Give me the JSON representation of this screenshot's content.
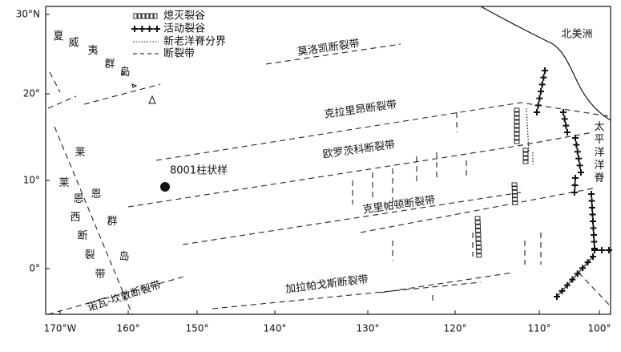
{
  "legend": [
    "熄灭裂谷",
    "活动裂谷",
    "新老洋脊分界",
    "断裂带"
  ],
  "lon_ticks": [
    "170°W",
    "160°",
    "150°",
    "140°",
    "130°",
    "120°",
    "110°",
    "100°"
  ],
  "lat_ticks": [
    "30°N",
    "20°",
    "10°",
    "0°"
  ],
  "labels": {
    "hawaii": "夏威夷群岛",
    "line_islands": "莱恩群岛",
    "line_west_fz": "莱恩西断裂带",
    "nova_canton_fz": "诺瓦-坎敦断裂带",
    "molokai_fz": "莫洛凯断裂带",
    "clarion_fz": "克拉里昂断裂带",
    "orozco_fz": "欧罗茨科断裂带",
    "clipperton_fz": "克里帕顿断裂带",
    "galapagos_fz": "加拉帕戈斯断裂带",
    "north_america": "北美洲",
    "pacific_rise": "太平洋洋脊",
    "core": "8001柱状样"
  }
}
